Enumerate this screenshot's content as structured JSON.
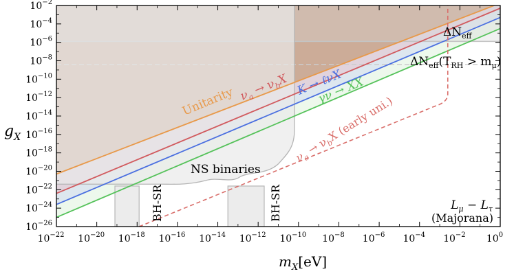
{
  "chart_data": {
    "type": "line",
    "title": "",
    "xlabel": "m_X[eV]",
    "ylabel": "g_X",
    "xscale": "log",
    "yscale": "log",
    "xlim_log10": [
      -22,
      0
    ],
    "ylim_log10": [
      -26,
      -2
    ],
    "x_ticks": [
      {
        "exp": -22,
        "label": "10",
        "sup": "−22"
      },
      {
        "exp": -20,
        "label": "10",
        "sup": "−20"
      },
      {
        "exp": -18,
        "label": "10",
        "sup": "−18"
      },
      {
        "exp": -16,
        "label": "10",
        "sup": "−16"
      },
      {
        "exp": -14,
        "label": "10",
        "sup": "−14"
      },
      {
        "exp": -12,
        "label": "10",
        "sup": "−12"
      },
      {
        "exp": -10,
        "label": "10",
        "sup": "−10"
      },
      {
        "exp": -8,
        "label": "10",
        "sup": "−8"
      },
      {
        "exp": -6,
        "label": "10",
        "sup": "−6"
      },
      {
        "exp": -4,
        "label": "10",
        "sup": "−4"
      },
      {
        "exp": -2,
        "label": "10",
        "sup": "−2"
      },
      {
        "exp": 0,
        "label": "10",
        "sup": "0"
      }
    ],
    "y_ticks": [
      {
        "exp": -26,
        "label": "10",
        "sup": "−26"
      },
      {
        "exp": -24,
        "label": "10",
        "sup": "−24"
      },
      {
        "exp": -22,
        "label": "10",
        "sup": "−22"
      },
      {
        "exp": -20,
        "label": "10",
        "sup": "−20"
      },
      {
        "exp": -18,
        "label": "10",
        "sup": "−18"
      },
      {
        "exp": -16,
        "label": "10",
        "sup": "−16"
      },
      {
        "exp": -14,
        "label": "10",
        "sup": "−14"
      },
      {
        "exp": -12,
        "label": "10",
        "sup": "−12"
      },
      {
        "exp": -10,
        "label": "10",
        "sup": "−10"
      },
      {
        "exp": -8,
        "label": "10",
        "sup": "−8"
      },
      {
        "exp": -6,
        "label": "10",
        "sup": "−6"
      },
      {
        "exp": -4,
        "label": "10",
        "sup": "−4"
      },
      {
        "exp": -2,
        "label": "10",
        "sup": "−2"
      }
    ],
    "series": [
      {
        "name": "Unitarity",
        "label": "Unitarity",
        "color": "#e8994a",
        "fill": "#c8a48c",
        "style": "solid",
        "x_log10": [
          -22,
          -0.3
        ],
        "y_log10": [
          -20.3,
          -2
        ]
      },
      {
        "name": "nu_a_to_nu_b_X",
        "label_main": "ν",
        "label_sub1": "a",
        "label_arrow": " → ν",
        "label_sub2": "b",
        "label_end": "X",
        "color": "#d15a5e",
        "fill": "#e3c2cc",
        "style": "solid",
        "x_log10": [
          -22,
          0
        ],
        "y_log10": [
          -22.4,
          -2.3
        ]
      },
      {
        "name": "K_to_l_nu_X",
        "label": "K → ℓνX",
        "color": "#4a6fe0",
        "fill": "#cfd9f2",
        "style": "solid",
        "x_log10": [
          -22,
          0
        ],
        "y_log10": [
          -23.6,
          -3.3
        ]
      },
      {
        "name": "gamma_nu_to_XX",
        "label": "γν → XX",
        "color": "#55c25a",
        "fill": "#dff3dc",
        "style": "solid",
        "x_log10": [
          -22,
          0
        ],
        "y_log10": [
          -25,
          -4.5
        ]
      },
      {
        "name": "nu_a_to_nu_b_X_early_uni",
        "label_main": "ν",
        "label_sub1": "a",
        "label_arrow": " → ν",
        "label_sub2": "b",
        "label_end": "X (early uni.)",
        "color": "#d96e6a",
        "style": "dashed",
        "x_log10": [
          -17.9,
          -2.6,
          -2.6
        ],
        "y_log10": [
          -26,
          -12.3,
          -2
        ]
      }
    ],
    "regions": [
      {
        "name": "Delta_N_eff",
        "label": "ΔN",
        "label_sub": "eff",
        "g_log10": -5.9,
        "style": "solid-gray"
      },
      {
        "name": "Delta_N_eff_TRH",
        "label": "ΔN",
        "label_sub": "eff",
        "label_paren": "(T",
        "label_paren_sub": "RH",
        "label_gt": " > m",
        "label_mu": "μ",
        "label_close": ")",
        "g_log10": -8.4,
        "style": "dashed-gray"
      },
      {
        "name": "NS_binaries",
        "label": "NS binaries",
        "m_max_log10": -10.2,
        "g_floor_log10": -21.4
      },
      {
        "name": "BH_SR_1",
        "label": "BH-SR",
        "m_range_log10": [
          -19.1,
          -17.9
        ],
        "g_top_log10": -21.6
      },
      {
        "name": "BH_SR_2",
        "label": "BH-SR",
        "m_range_log10": [
          -13.5,
          -11.7
        ],
        "g_top_log10": -21.6
      }
    ],
    "annotation": {
      "model_main": "L",
      "model_sub1": "μ",
      "model_minus": " − L",
      "model_sub2": "τ",
      "model_second": "(Majorana)"
    },
    "colors": {
      "axis": "#000000",
      "gray_region": "#f0f0f0",
      "gray_edge": "#b5b5b5"
    }
  }
}
